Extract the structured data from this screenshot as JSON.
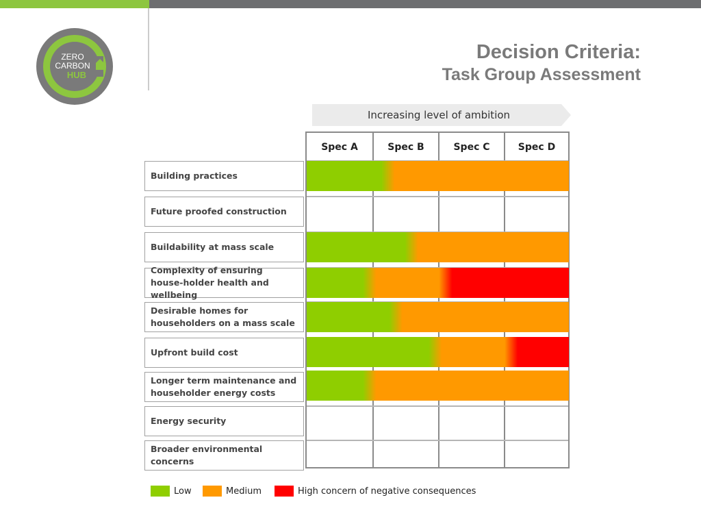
{
  "colors": {
    "low": "#8fce00",
    "medium": "#ff9900",
    "high": "#ff0000",
    "brand_green": "#8dc63f",
    "brand_gray": "#6d6e70"
  },
  "logo": {
    "line1": "ZERO",
    "line2": "CARBON",
    "line3": "HUB"
  },
  "title": {
    "main": "Decision Criteria:",
    "sub": "Task Group Assessment"
  },
  "ambition_label": "Increasing level of ambition",
  "columns": [
    "Spec A",
    "Spec B",
    "Spec C",
    "Spec D"
  ],
  "rows": [
    {
      "label": "Building practices",
      "assessment": [
        [
          "low",
          0.31
        ],
        [
          "medium",
          1.0
        ]
      ]
    },
    {
      "label": "Future proofed construction",
      "assessment": []
    },
    {
      "label": "Buildability at mass scale",
      "assessment": [
        [
          "low",
          0.4
        ],
        [
          "medium",
          1.0
        ]
      ]
    },
    {
      "label": "Complexity of ensuring house-holder health and wellbeing",
      "assessment": [
        [
          "low",
          0.24
        ],
        [
          "medium",
          0.53
        ],
        [
          "high",
          1.0
        ]
      ]
    },
    {
      "label": "Desirable homes for householders on a mass scale",
      "assessment": [
        [
          "low",
          0.34
        ],
        [
          "medium",
          1.0
        ]
      ]
    },
    {
      "label": "Upfront build cost",
      "assessment": [
        [
          "low",
          0.49
        ],
        [
          "medium",
          0.78
        ],
        [
          "high",
          1.0
        ]
      ]
    },
    {
      "label": "Longer term maintenance and householder energy costs",
      "assessment": [
        [
          "low",
          0.24
        ],
        [
          "medium",
          1.0
        ]
      ]
    },
    {
      "label": "Energy security",
      "assessment": []
    },
    {
      "label": "Broader environmental concerns",
      "assessment": []
    }
  ],
  "legend": [
    {
      "key": "low",
      "label": "Low"
    },
    {
      "key": "medium",
      "label": "Medium"
    },
    {
      "key": "high",
      "label": "High concern of negative consequences"
    }
  ]
}
